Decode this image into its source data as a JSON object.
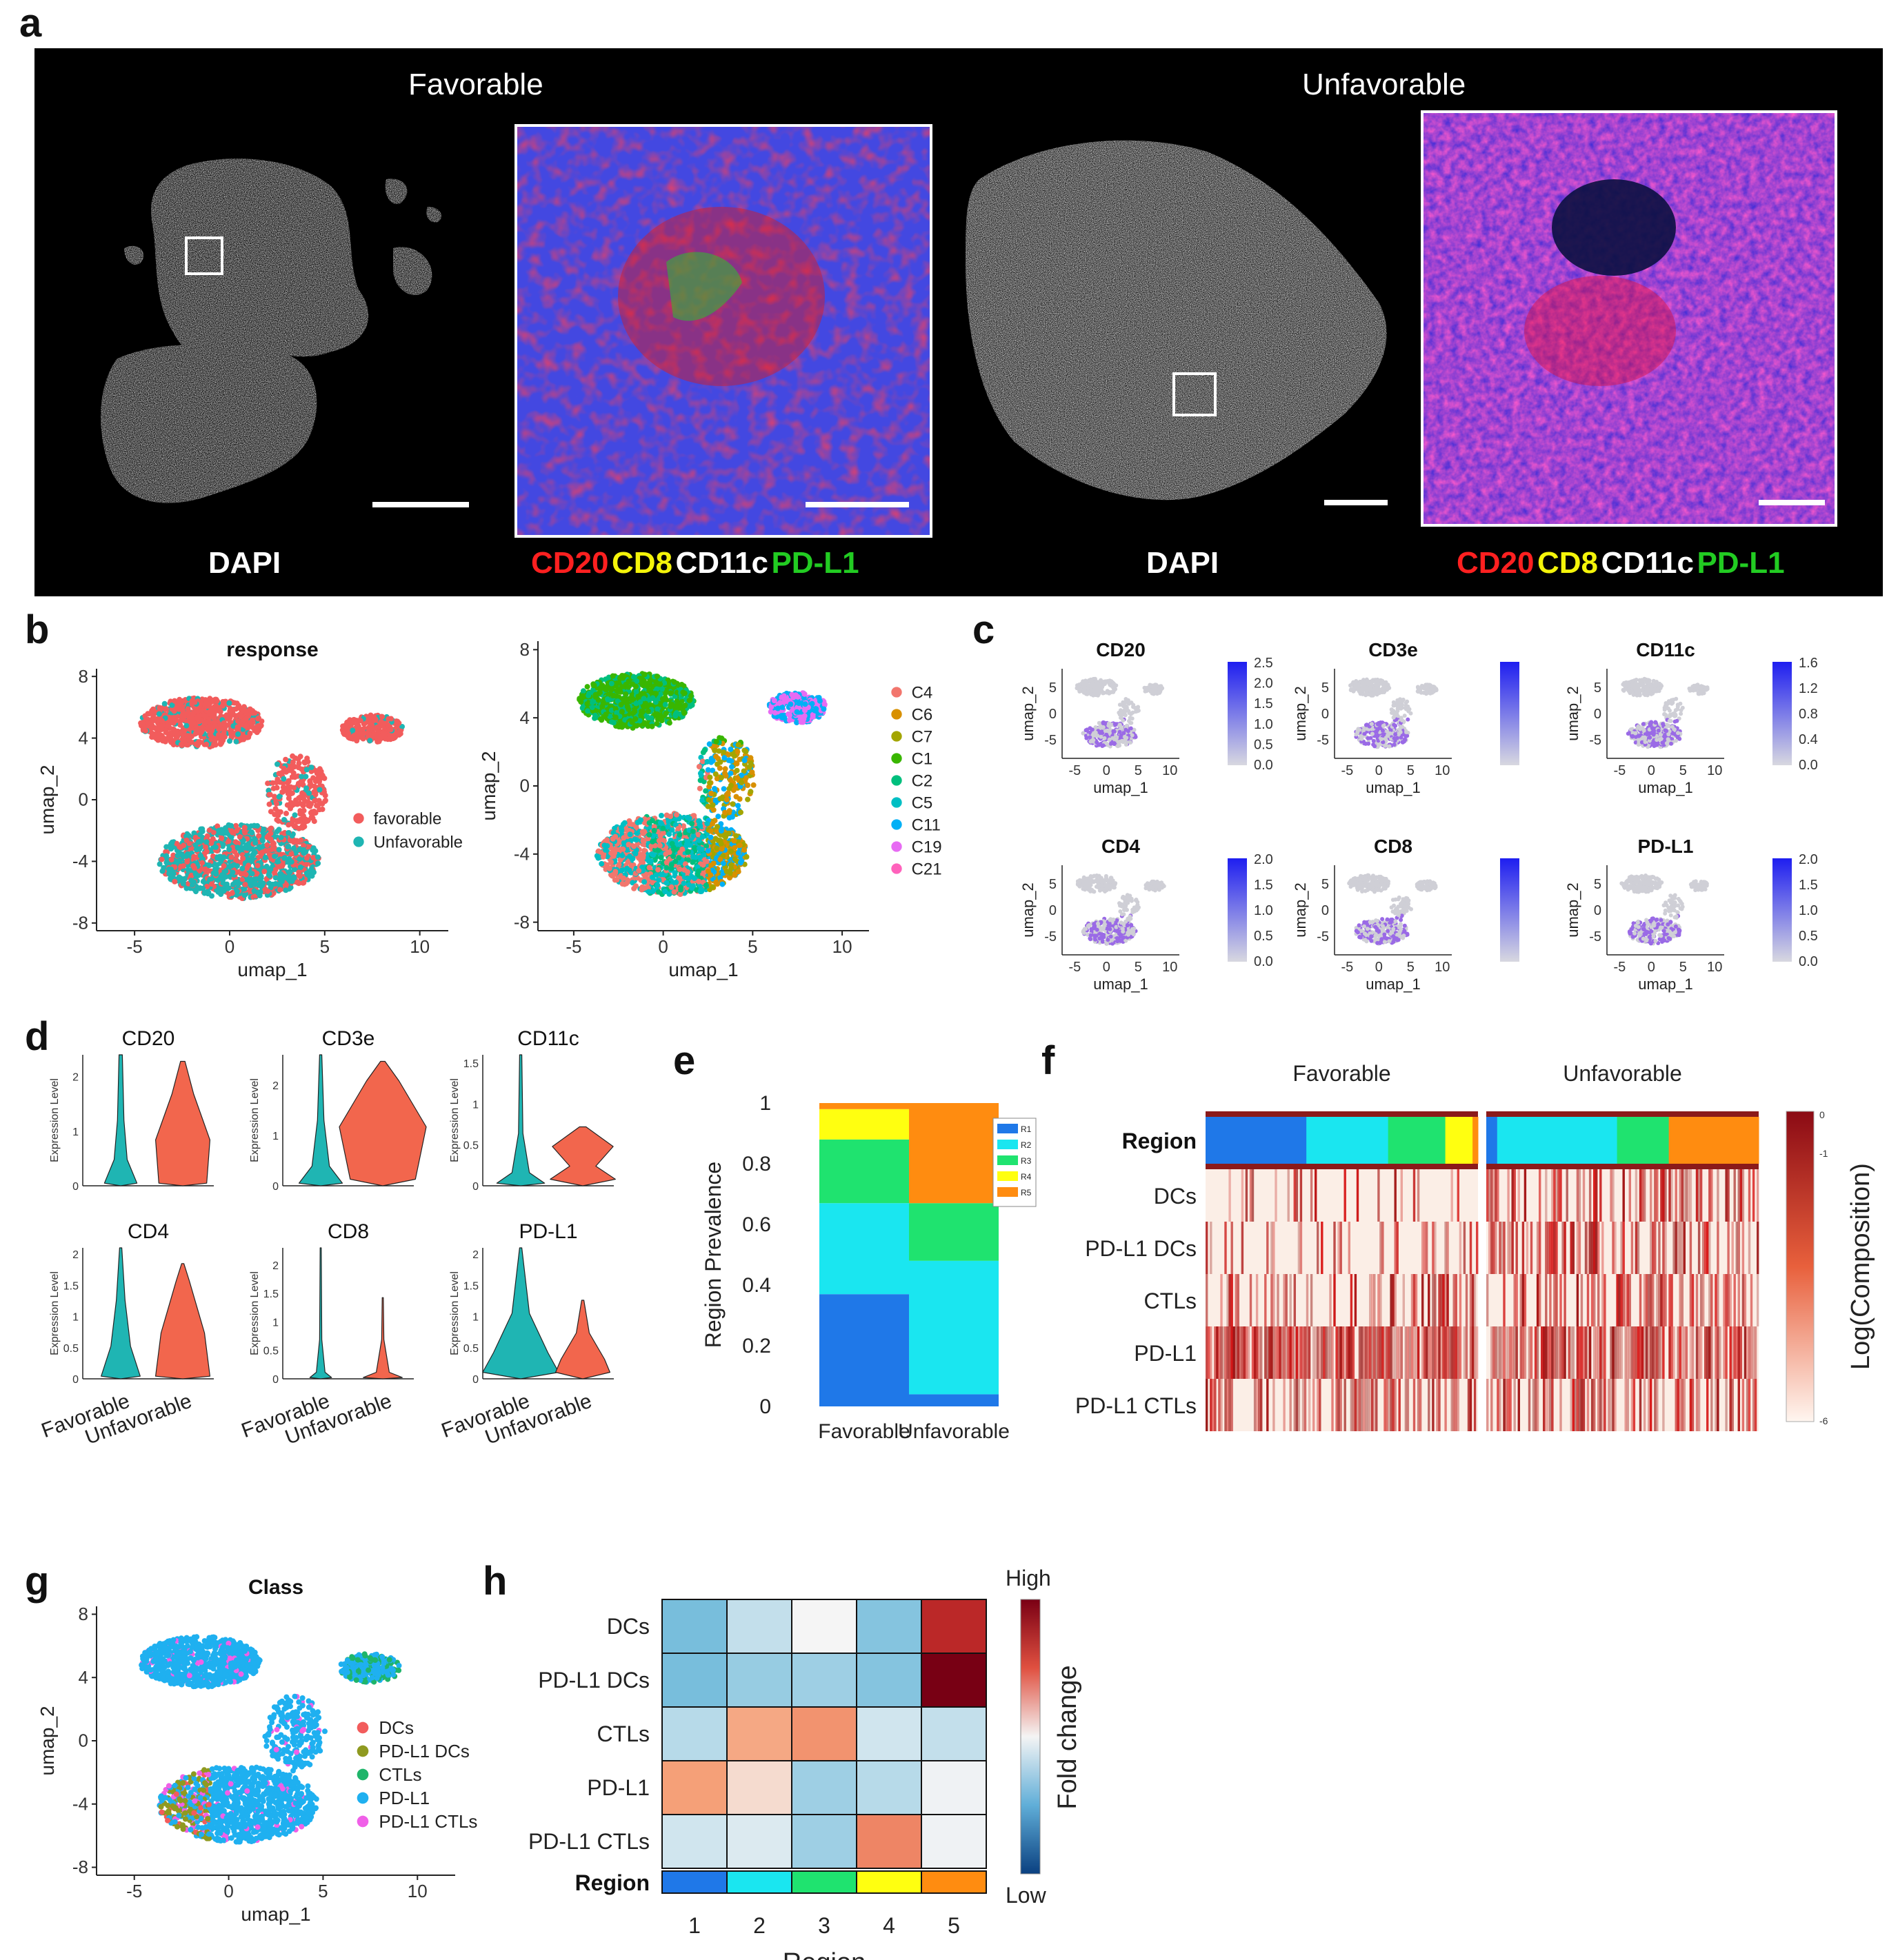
{
  "panel_labels": {
    "a": "a",
    "b": "b",
    "c": "c",
    "d": "d",
    "e": "e",
    "f": "f",
    "g": "g",
    "h": "h"
  },
  "panel_a": {
    "left_title": "Favorable",
    "right_title": "Unfavorable",
    "dapi_label": "DAPI",
    "marker_labels": [
      {
        "text": "CD20",
        "color": "#ff2020"
      },
      {
        "text": "CD8",
        "color": "#f4f40a"
      },
      {
        "text": "CD11c",
        "color": "#ffffff"
      },
      {
        "text": "PD-L1",
        "color": "#22cc22"
      }
    ]
  },
  "chart_data": [
    {
      "id": "b-left",
      "type": "scatter",
      "title": "response",
      "xlabel": "umap_1",
      "ylabel": "umap_2",
      "xticks": [
        -5,
        0,
        5,
        10
      ],
      "yticks": [
        8,
        4,
        0,
        -4,
        -8
      ],
      "xlim": [
        -7,
        11.5
      ],
      "ylim": [
        -8.5,
        8.5
      ],
      "legend": [
        {
          "name": "favorable",
          "color": "#f25c5c"
        },
        {
          "name": "Unfavorable",
          "color": "#1fb5b3"
        }
      ]
    },
    {
      "id": "b-right",
      "type": "scatter",
      "title": "",
      "xlabel": "umap_1",
      "ylabel": "umap_2",
      "xticks": [
        -5,
        0,
        5,
        10
      ],
      "yticks": [
        8,
        4,
        0,
        -4,
        -8
      ],
      "xlim": [
        -7,
        11.5
      ],
      "ylim": [
        -8.5,
        8.5
      ],
      "legend": [
        {
          "name": "C4",
          "color": "#f2766d"
        },
        {
          "name": "C6",
          "color": "#d89000"
        },
        {
          "name": "C7",
          "color": "#a3a500"
        },
        {
          "name": "C1",
          "color": "#39b600"
        },
        {
          "name": "C2",
          "color": "#00bf7d"
        },
        {
          "name": "C5",
          "color": "#00bfc4"
        },
        {
          "name": "C11",
          "color": "#00b0f6"
        },
        {
          "name": "C19",
          "color": "#e76bf3"
        },
        {
          "name": "C21",
          "color": "#ff62bc"
        }
      ]
    },
    {
      "id": "c",
      "type": "scatter",
      "xlabel": "umap_1",
      "ylabel": "umap_2",
      "xticks": [
        -5,
        0,
        5,
        10
      ],
      "yticks": [
        5,
        0,
        -5
      ],
      "features": [
        {
          "name": "CD20",
          "scale": [
            "2.5",
            "2.0",
            "1.5",
            "1.0",
            "0.5",
            "0.0"
          ]
        },
        {
          "name": "CD3e",
          "scale": []
        },
        {
          "name": "CD11c",
          "scale": [
            "1.6",
            "1.2",
            "0.8",
            "0.4",
            "0.0"
          ]
        },
        {
          "name": "CD4",
          "scale": [
            "2.0",
            "1.5",
            "1.0",
            "0.5",
            "0.0"
          ]
        },
        {
          "name": "CD8",
          "scale": []
        },
        {
          "name": "PD-L1",
          "scale": [
            "2.0",
            "1.5",
            "1.0",
            "0.5",
            "0.0"
          ]
        }
      ]
    },
    {
      "id": "d",
      "type": "violin",
      "ylabel": "Expression Level",
      "groups": [
        "Favorable",
        "Unfavorable"
      ],
      "group_colors": [
        "#1fb5b3",
        "#f2664d"
      ],
      "markers": [
        {
          "name": "CD20",
          "yticks": [
            0,
            1,
            2
          ],
          "ymax": 2.4
        },
        {
          "name": "CD3e",
          "yticks": [
            0,
            1,
            2
          ],
          "ymax": 2.6
        },
        {
          "name": "CD11c",
          "yticks": [
            0,
            0.5,
            1,
            1.5
          ],
          "ymax": 1.6
        },
        {
          "name": "CD4",
          "yticks": [
            0,
            0.5,
            1,
            1.5,
            2
          ],
          "ymax": 2.1
        },
        {
          "name": "CD8",
          "yticks": [
            0,
            0.5,
            1,
            1.5,
            2
          ],
          "ymax": 2.3
        },
        {
          "name": "PD-L1",
          "yticks": [
            0,
            0.5,
            1,
            1.5,
            2
          ],
          "ymax": 2.1
        }
      ]
    },
    {
      "id": "e",
      "type": "bar",
      "stacked": true,
      "ylabel": "Region Prevalence",
      "categories": [
        "Favorable",
        "Unfavorable"
      ],
      "yticks": [
        0,
        0.2,
        0.4,
        0.6,
        0.8,
        1
      ],
      "ylim": [
        0,
        1
      ],
      "series": [
        {
          "name": "R1",
          "color": "#1f78e8",
          "values": [
            0.37,
            0.04
          ]
        },
        {
          "name": "R2",
          "color": "#1ae6f0",
          "values": [
            0.3,
            0.44
          ]
        },
        {
          "name": "R3",
          "color": "#1fe36f",
          "values": [
            0.21,
            0.19
          ]
        },
        {
          "name": "R4",
          "color": "#ffff10",
          "values": [
            0.1,
            0.0
          ]
        },
        {
          "name": "R5",
          "color": "#ff8c10",
          "values": [
            0.02,
            0.33
          ]
        }
      ]
    },
    {
      "id": "f",
      "type": "heatmap",
      "groups": [
        "Favorable",
        "Unfavorable"
      ],
      "rows": [
        "DCs",
        "PD-L1 DCs",
        "CTLs",
        "PD-L1",
        "PD-L1 CTLs"
      ],
      "region_row_label": "Region",
      "colorbar_label": "Log(Composition)",
      "colorbar_ticks": [
        "0",
        "-1",
        "-6"
      ],
      "region_segments": {
        "Favorable": [
          {
            "region": "R1",
            "fraction": 0.37
          },
          {
            "region": "R2",
            "fraction": 0.3
          },
          {
            "region": "R3",
            "fraction": 0.21
          },
          {
            "region": "R4",
            "fraction": 0.1
          },
          {
            "region": "R5",
            "fraction": 0.02
          }
        ],
        "Unfavorable": [
          {
            "region": "R1",
            "fraction": 0.04
          },
          {
            "region": "R2",
            "fraction": 0.44
          },
          {
            "region": "R3",
            "fraction": 0.19
          },
          {
            "region": "R5",
            "fraction": 0.33
          }
        ]
      },
      "row_density": {
        "Favorable": [
          0.15,
          0.3,
          0.4,
          0.92,
          0.55
        ],
        "Unfavorable": [
          0.45,
          0.55,
          0.45,
          0.85,
          0.55
        ]
      }
    },
    {
      "id": "g",
      "type": "scatter",
      "title": "Class",
      "xlabel": "umap_1",
      "ylabel": "umap_2",
      "xticks": [
        -5,
        0,
        5,
        10
      ],
      "yticks": [
        8,
        4,
        0,
        -4,
        -8
      ],
      "legend": [
        {
          "name": "DCs",
          "color": "#f25c5c"
        },
        {
          "name": "PD-L1 DCs",
          "color": "#8f9a20"
        },
        {
          "name": "CTLs",
          "color": "#1fb56a"
        },
        {
          "name": "PD-L1",
          "color": "#1fb0f0"
        },
        {
          "name": "PD-L1 CTLs",
          "color": "#f060e8"
        }
      ]
    },
    {
      "id": "h",
      "type": "heatmap",
      "rows": [
        "DCs",
        "PD-L1 DCs",
        "CTLs",
        "PD-L1",
        "PD-L1 CTLs"
      ],
      "columns": [
        "1",
        "2",
        "3",
        "4",
        "5"
      ],
      "xlabel": "Region",
      "region_row_label": "Region",
      "colorbar_label": "Fold change",
      "colorbar_high": "High",
      "colorbar_low": "Low",
      "values": [
        [
          0.3,
          0.42,
          0.5,
          0.32,
          0.9
        ],
        [
          0.3,
          0.35,
          0.36,
          0.32,
          1.0
        ],
        [
          0.4,
          0.68,
          0.72,
          0.44,
          0.42
        ],
        [
          0.7,
          0.56,
          0.36,
          0.4,
          0.49
        ],
        [
          0.44,
          0.46,
          0.36,
          0.74,
          0.49
        ]
      ],
      "region_colors": [
        "#1f78e8",
        "#1ae6f0",
        "#1fe36f",
        "#ffff10",
        "#ff8c10"
      ]
    }
  ]
}
